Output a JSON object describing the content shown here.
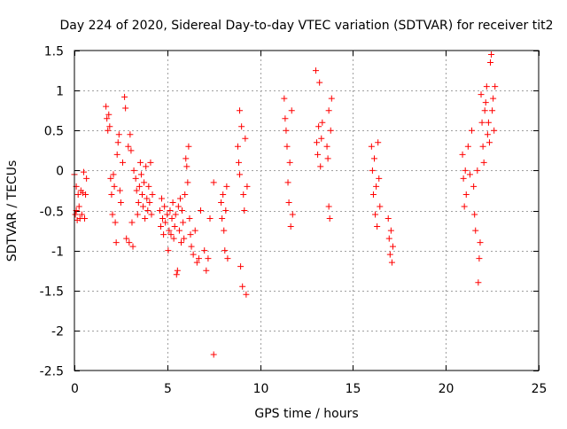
{
  "chart_data": {
    "type": "scatter",
    "title": "Day 224 of 2020, Sidereal Day-to-day VTEC variation (SDTVAR) for receiver tit2",
    "xlabel": "GPS time / hours",
    "ylabel": "SDTVAR / TECUs",
    "xlim": [
      0,
      25
    ],
    "ylim": [
      -2.5,
      1.5
    ],
    "xticks": [
      0,
      5,
      10,
      15,
      20,
      25
    ],
    "xtick_labels": [
      "0",
      "5",
      "10",
      "15",
      "20",
      "25"
    ],
    "yticks": [
      -2.5,
      -2,
      -1.5,
      -1,
      -0.5,
      0,
      0.5,
      1,
      1.5
    ],
    "ytick_labels": [
      "-2.5",
      "-2",
      "-1.5",
      "-1",
      "-0.5",
      "0",
      "0.5",
      "1",
      "1.5"
    ],
    "grid": true,
    "marker": "+",
    "marker_color": "#ff0000",
    "series": [
      {
        "name": "SDTVAR",
        "points": [
          [
            0.0,
            -0.05
          ],
          [
            0.05,
            -0.55
          ],
          [
            0.1,
            -0.2
          ],
          [
            0.1,
            -0.5
          ],
          [
            0.15,
            -0.62
          ],
          [
            0.2,
            -0.3
          ],
          [
            0.25,
            -0.45
          ],
          [
            0.3,
            -0.6
          ],
          [
            0.35,
            -0.25
          ],
          [
            0.4,
            -0.55
          ],
          [
            0.45,
            -0.28
          ],
          [
            0.5,
            -0.02
          ],
          [
            0.55,
            -0.6
          ],
          [
            0.6,
            -0.3
          ],
          [
            0.65,
            -0.1
          ],
          [
            1.7,
            0.8
          ],
          [
            1.75,
            0.65
          ],
          [
            1.8,
            0.5
          ],
          [
            1.85,
            0.7
          ],
          [
            1.9,
            0.55
          ],
          [
            1.95,
            -0.1
          ],
          [
            2.0,
            -0.3
          ],
          [
            2.05,
            -0.55
          ],
          [
            2.1,
            -0.05
          ],
          [
            2.15,
            -0.2
          ],
          [
            2.2,
            -0.65
          ],
          [
            2.25,
            -0.9
          ],
          [
            2.3,
            0.2
          ],
          [
            2.35,
            0.35
          ],
          [
            2.4,
            0.45
          ],
          [
            2.45,
            -0.25
          ],
          [
            2.5,
            -0.4
          ],
          [
            2.6,
            0.1
          ],
          [
            2.7,
            0.92
          ],
          [
            2.75,
            0.78
          ],
          [
            2.8,
            -0.85
          ],
          [
            2.9,
            0.3
          ],
          [
            2.95,
            -0.9
          ],
          [
            3.0,
            0.45
          ],
          [
            3.05,
            0.25
          ],
          [
            3.1,
            -0.65
          ],
          [
            3.15,
            -0.95
          ],
          [
            3.2,
            0.0
          ],
          [
            3.3,
            -0.1
          ],
          [
            3.35,
            -0.25
          ],
          [
            3.4,
            -0.55
          ],
          [
            3.45,
            -0.4
          ],
          [
            3.5,
            -0.2
          ],
          [
            3.55,
            0.1
          ],
          [
            3.6,
            -0.05
          ],
          [
            3.65,
            -0.3
          ],
          [
            3.7,
            -0.45
          ],
          [
            3.75,
            -0.15
          ],
          [
            3.8,
            -0.6
          ],
          [
            3.85,
            0.05
          ],
          [
            3.9,
            -0.35
          ],
          [
            3.95,
            -0.5
          ],
          [
            4.0,
            -0.2
          ],
          [
            4.05,
            -0.4
          ],
          [
            4.1,
            0.1
          ],
          [
            4.15,
            -0.55
          ],
          [
            4.2,
            -0.3
          ],
          [
            4.6,
            -0.5
          ],
          [
            4.65,
            -0.7
          ],
          [
            4.7,
            -0.35
          ],
          [
            4.75,
            -0.6
          ],
          [
            4.8,
            -0.8
          ],
          [
            4.85,
            -0.45
          ],
          [
            4.9,
            -0.65
          ],
          [
            5.0,
            -0.55
          ],
          [
            5.05,
            -1.0
          ],
          [
            5.1,
            -0.75
          ],
          [
            5.15,
            -0.5
          ],
          [
            5.2,
            -0.8
          ],
          [
            5.25,
            -0.6
          ],
          [
            5.3,
            -0.4
          ],
          [
            5.35,
            -0.85
          ],
          [
            5.4,
            -0.7
          ],
          [
            5.45,
            -0.55
          ],
          [
            5.5,
            -1.3
          ],
          [
            5.55,
            -1.25
          ],
          [
            5.6,
            -0.45
          ],
          [
            5.65,
            -0.75
          ],
          [
            5.7,
            -0.35
          ],
          [
            5.75,
            -0.9
          ],
          [
            5.8,
            -0.5
          ],
          [
            5.85,
            -0.65
          ],
          [
            5.9,
            -0.85
          ],
          [
            5.95,
            -0.3
          ],
          [
            6.0,
            0.15
          ],
          [
            6.05,
            0.05
          ],
          [
            6.1,
            -0.15
          ],
          [
            6.15,
            0.3
          ],
          [
            6.2,
            -0.6
          ],
          [
            6.25,
            -0.8
          ],
          [
            6.3,
            -0.95
          ],
          [
            6.4,
            -1.05
          ],
          [
            6.5,
            -0.75
          ],
          [
            6.6,
            -1.15
          ],
          [
            6.7,
            -1.1
          ],
          [
            6.8,
            -0.5
          ],
          [
            7.0,
            -1.0
          ],
          [
            7.1,
            -1.25
          ],
          [
            7.2,
            -1.1
          ],
          [
            7.3,
            -0.6
          ],
          [
            7.5,
            -0.15
          ],
          [
            7.5,
            -2.3
          ],
          [
            7.9,
            -0.4
          ],
          [
            7.95,
            -0.6
          ],
          [
            8.0,
            -0.3
          ],
          [
            8.05,
            -0.75
          ],
          [
            8.1,
            -1.0
          ],
          [
            8.15,
            -0.5
          ],
          [
            8.2,
            -0.2
          ],
          [
            8.25,
            -1.1
          ],
          [
            8.8,
            0.3
          ],
          [
            8.85,
            0.1
          ],
          [
            8.9,
            -0.05
          ],
          [
            8.9,
            0.75
          ],
          [
            8.95,
            -1.2
          ],
          [
            9.0,
            0.55
          ],
          [
            9.05,
            -1.45
          ],
          [
            9.1,
            -0.3
          ],
          [
            9.15,
            -0.5
          ],
          [
            9.2,
            0.4
          ],
          [
            9.25,
            -1.55
          ],
          [
            9.3,
            -0.2
          ],
          [
            11.3,
            0.9
          ],
          [
            11.35,
            0.65
          ],
          [
            11.4,
            0.5
          ],
          [
            11.45,
            0.3
          ],
          [
            11.5,
            -0.15
          ],
          [
            11.55,
            -0.4
          ],
          [
            11.6,
            0.1
          ],
          [
            11.65,
            -0.7
          ],
          [
            11.7,
            0.75
          ],
          [
            11.75,
            -0.55
          ],
          [
            13.0,
            1.25
          ],
          [
            13.05,
            0.35
          ],
          [
            13.1,
            0.2
          ],
          [
            13.15,
            0.55
          ],
          [
            13.2,
            1.1
          ],
          [
            13.25,
            0.05
          ],
          [
            13.3,
            0.4
          ],
          [
            13.35,
            0.6
          ],
          [
            13.6,
            0.3
          ],
          [
            13.65,
            0.15
          ],
          [
            13.7,
            0.75
          ],
          [
            13.75,
            -0.6
          ],
          [
            13.8,
            0.5
          ],
          [
            13.85,
            0.9
          ],
          [
            13.7,
            -0.45
          ],
          [
            16.0,
            0.3
          ],
          [
            16.05,
            0.0
          ],
          [
            16.1,
            -0.3
          ],
          [
            16.15,
            0.15
          ],
          [
            16.2,
            -0.55
          ],
          [
            16.25,
            -0.2
          ],
          [
            16.3,
            -0.7
          ],
          [
            16.35,
            0.35
          ],
          [
            16.4,
            -0.1
          ],
          [
            16.45,
            -0.45
          ],
          [
            16.9,
            -0.6
          ],
          [
            16.95,
            -0.85
          ],
          [
            17.0,
            -1.05
          ],
          [
            17.05,
            -0.75
          ],
          [
            17.1,
            -1.15
          ],
          [
            17.15,
            -0.95
          ],
          [
            20.9,
            0.2
          ],
          [
            20.95,
            -0.1
          ],
          [
            21.0,
            -0.45
          ],
          [
            21.05,
            0.0
          ],
          [
            21.1,
            -0.3
          ],
          [
            21.2,
            0.3
          ],
          [
            21.3,
            -0.05
          ],
          [
            21.4,
            0.5
          ],
          [
            21.5,
            -0.2
          ],
          [
            21.55,
            -0.55
          ],
          [
            21.6,
            -0.75
          ],
          [
            21.7,
            0.0
          ],
          [
            21.75,
            -1.4
          ],
          [
            21.8,
            -1.1
          ],
          [
            21.85,
            -0.9
          ],
          [
            21.9,
            0.95
          ],
          [
            21.95,
            0.6
          ],
          [
            22.0,
            0.3
          ],
          [
            22.05,
            0.1
          ],
          [
            22.1,
            0.75
          ],
          [
            22.15,
            0.85
          ],
          [
            22.2,
            1.05
          ],
          [
            22.25,
            0.45
          ],
          [
            22.3,
            0.6
          ],
          [
            22.35,
            0.35
          ],
          [
            22.4,
            1.35
          ],
          [
            22.45,
            1.45
          ],
          [
            22.5,
            0.75
          ],
          [
            22.55,
            0.9
          ],
          [
            22.6,
            0.5
          ],
          [
            22.65,
            1.05
          ]
        ]
      }
    ]
  }
}
